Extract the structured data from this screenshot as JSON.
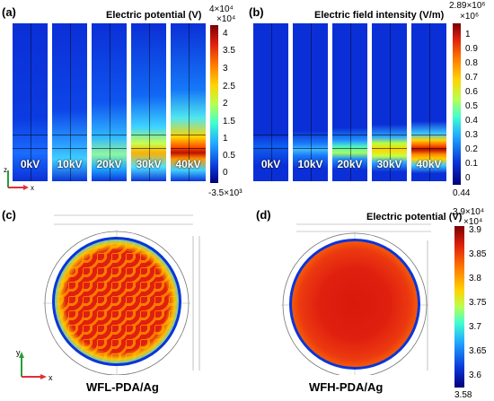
{
  "panel_a": {
    "label": "(a)",
    "title": "Electric potential (V)",
    "colorbar_max": "4×10⁴",
    "colorbar_unit": "×10⁴",
    "colorbar_min": "-3.5×10³",
    "ticks": [
      "4",
      "3.5",
      "3",
      "2.5",
      "2",
      "1.5",
      "1",
      "0.5",
      "0"
    ],
    "strips": [
      "0kV",
      "10kV",
      "20kV",
      "30kV",
      "40kV"
    ],
    "axis_z": "z",
    "axis_x": "x"
  },
  "panel_b": {
    "label": "(b)",
    "title": "Electric field intensity (V/m)",
    "colorbar_max": "2.89×10⁶",
    "colorbar_unit": "×10⁶",
    "colorbar_min": "0.44",
    "ticks": [
      "1",
      "0.9",
      "0.8",
      "0.7",
      "0.6",
      "0.5",
      "0.4",
      "0.3",
      "0.2",
      "0.1",
      "0"
    ],
    "strips": [
      "0kV",
      "10kV",
      "20kV",
      "30kV",
      "40kV"
    ]
  },
  "panel_c": {
    "label": "(c)",
    "name": "WFL-PDA/Ag",
    "axis_y": "y",
    "axis_x": "x"
  },
  "panel_d": {
    "label": "(d)",
    "title": "Electric potential (V)",
    "colorbar_max": "3.9×10⁴",
    "colorbar_unit": "×10⁴",
    "colorbar_min": "3.58",
    "ticks": [
      "3.9",
      "3.85",
      "3.8",
      "3.75",
      "3.7",
      "3.65",
      "3.6"
    ],
    "name": "WFH-PDA/Ag"
  },
  "colors": {
    "jet_blue": "#0b2fd6",
    "jet_red": "#e0200f",
    "jet_yellow": "#ffd400"
  }
}
